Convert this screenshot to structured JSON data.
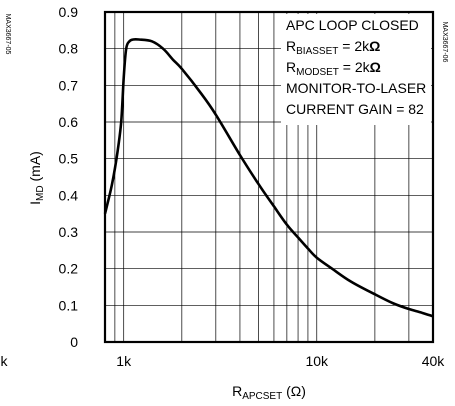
{
  "chart_data": {
    "type": "line",
    "xscale": "log",
    "xlim": [
      800,
      40000
    ],
    "ylim": [
      0,
      0.9
    ],
    "grid": true,
    "x_ticks": [
      {
        "value": 1000,
        "label": "1k"
      },
      {
        "value": 10000,
        "label": "10k"
      },
      {
        "value": 40000,
        "label": "40k"
      }
    ],
    "left_edge_label": "k",
    "y_ticks": [
      {
        "value": 0,
        "label": "0"
      },
      {
        "value": 0.1,
        "label": "0.1"
      },
      {
        "value": 0.2,
        "label": "0.2"
      },
      {
        "value": 0.3,
        "label": "0.3"
      },
      {
        "value": 0.4,
        "label": "0.4"
      },
      {
        "value": 0.5,
        "label": "0.5"
      },
      {
        "value": 0.6,
        "label": "0.6"
      },
      {
        "value": 0.7,
        "label": "0.7"
      },
      {
        "value": 0.8,
        "label": "0.8"
      },
      {
        "value": 0.9,
        "label": "0.9"
      }
    ],
    "xlabel": {
      "main": "R",
      "sub": "APCSET",
      "unit": " (Ω)"
    },
    "ylabel": {
      "main": "I",
      "sub": "MD",
      "unit": " (mA)"
    },
    "annotations": [
      {
        "parts": [
          {
            "t": "APC LOOP CLOSED"
          }
        ]
      },
      {
        "parts": [
          {
            "t": "R"
          },
          {
            "t": "BIASSET",
            "sub": true
          },
          {
            "t": " = 2k"
          },
          {
            "t": "Ω",
            "bold": true
          }
        ]
      },
      {
        "parts": [
          {
            "t": "R"
          },
          {
            "t": "MODSET",
            "sub": true
          },
          {
            "t": " = 2k"
          },
          {
            "t": "Ω",
            "bold": true
          }
        ]
      },
      {
        "parts": [
          {
            "t": "MONITOR-TO-LASER"
          }
        ]
      },
      {
        "parts": [
          {
            "t": "CURRENT GAIN = 82"
          }
        ]
      }
    ],
    "side_codes": [
      "MAX3667-06",
      "MAX3667-05"
    ],
    "series": [
      {
        "x": [
          800,
          870,
          930,
          970,
          1000,
          1030,
          1070,
          1120,
          1200,
          1400,
          1600,
          1800,
          2000,
          2500,
          3000,
          4000,
          5000,
          6000,
          7000,
          8000,
          9000,
          10000,
          12000,
          15000,
          20000,
          25000,
          30000,
          35000,
          40000
        ],
        "y": [
          0.35,
          0.43,
          0.52,
          0.6,
          0.72,
          0.8,
          0.82,
          0.825,
          0.825,
          0.82,
          0.8,
          0.77,
          0.745,
          0.68,
          0.62,
          0.51,
          0.43,
          0.37,
          0.32,
          0.285,
          0.255,
          0.23,
          0.2,
          0.165,
          0.13,
          0.105,
          0.09,
          0.08,
          0.07
        ]
      }
    ]
  },
  "colors": {
    "line": "#000000",
    "grid": "#000000",
    "background": "#ffffff"
  }
}
